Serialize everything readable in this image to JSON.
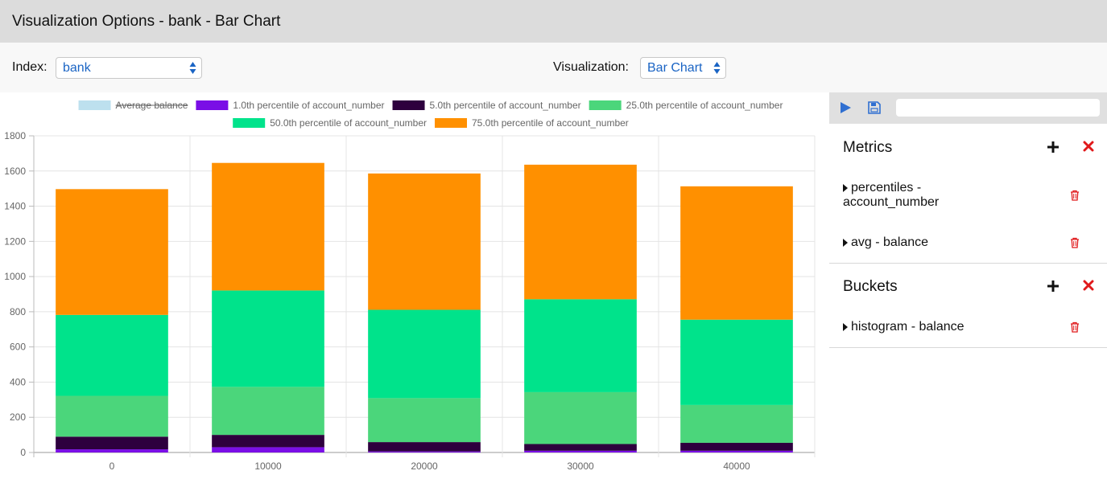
{
  "window": {
    "title": "Visualization Options - bank - Bar Chart"
  },
  "toolbar": {
    "index_label": "Index:",
    "index_value": "bank",
    "visualization_label": "Visualization:",
    "visualization_value": "Bar Chart"
  },
  "panel": {
    "search_value": "",
    "metrics": {
      "title": "Metrics",
      "items": [
        {
          "label_line1": "percentiles -",
          "label_line2": "account_number"
        },
        {
          "label_line1": "avg - balance"
        }
      ]
    },
    "buckets": {
      "title": "Buckets",
      "items": [
        {
          "label_line1": "histogram - balance"
        }
      ]
    }
  },
  "colors": {
    "accent_blue": "#1a64c4",
    "delete_red": "#e0191b"
  },
  "chart_data": {
    "type": "bar",
    "stacked": true,
    "categories": [
      "0",
      "10000",
      "20000",
      "30000",
      "40000"
    ],
    "ylim": [
      0,
      1800
    ],
    "yticks": [
      0,
      200,
      400,
      600,
      800,
      1000,
      1200,
      1400,
      1600,
      1800
    ],
    "grid": true,
    "legend_position": "top",
    "series": [
      {
        "name": "Average balance",
        "color": "#bde0ee",
        "hidden": true,
        "values": [
          0,
          0,
          0,
          0,
          0
        ]
      },
      {
        "name": "1.0th percentile of account_number",
        "color": "#7a0ee6",
        "values": [
          18,
          30,
          6,
          10,
          10
        ]
      },
      {
        "name": "5.0th percentile of account_number",
        "color": "#2e003e",
        "values": [
          72,
          70,
          53,
          38,
          45
        ]
      },
      {
        "name": "25.0th percentile of account_number",
        "color": "#4bd67b",
        "values": [
          232,
          273,
          250,
          295,
          215
        ]
      },
      {
        "name": "50.0th percentile of account_number",
        "color": "#00e38b",
        "values": [
          460,
          548,
          502,
          528,
          485
        ]
      },
      {
        "name": "75.0th percentile of account_number",
        "color": "#ff9000",
        "values": [
          715,
          725,
          775,
          765,
          758
        ]
      }
    ]
  }
}
